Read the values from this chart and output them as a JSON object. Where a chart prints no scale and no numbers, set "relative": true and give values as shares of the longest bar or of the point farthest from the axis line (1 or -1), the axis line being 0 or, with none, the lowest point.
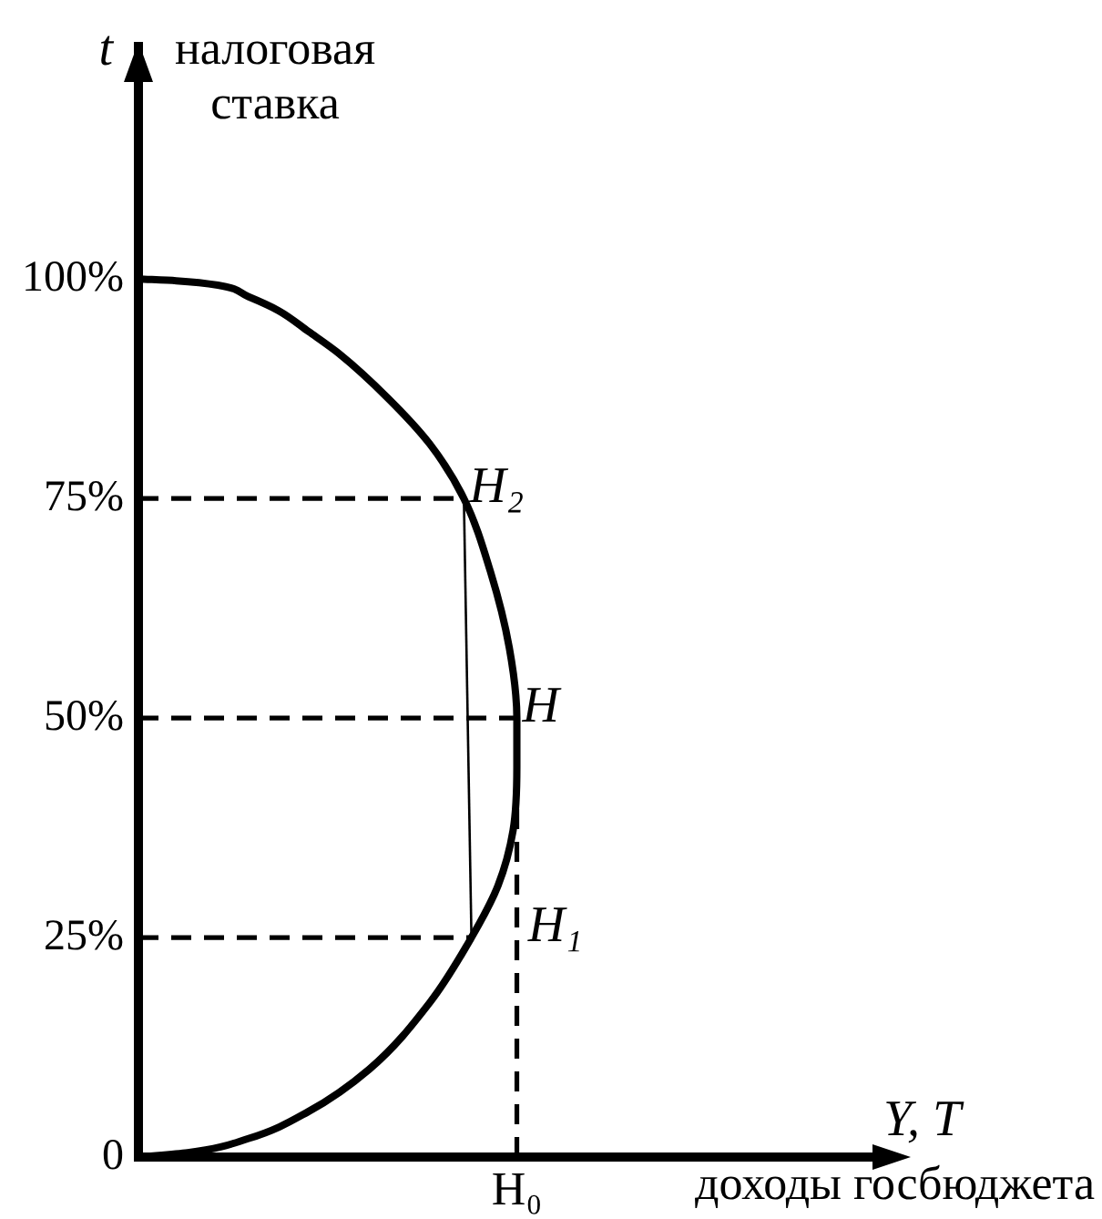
{
  "chart_data": {
    "type": "line",
    "orientation": "horizontal",
    "relative": true,
    "xlabel": "доходы госбюджета",
    "ylabel": "налоговая ставка",
    "annotations": [
      "t",
      "Y, T",
      {
        "text": "H₂",
        "x": 0.86,
        "y": 75
      },
      {
        "text": "H",
        "x": 1.0,
        "y": 50
      },
      {
        "text": "H₁",
        "x": 0.88,
        "y": 25
      },
      {
        "text": "H₀",
        "x": 1.0,
        "y": 0
      }
    ],
    "ylim": [
      0,
      127
    ],
    "yticks": [
      {
        "value": 0,
        "label": "0"
      },
      {
        "value": 25,
        "label": "25%"
      },
      {
        "value": 50,
        "label": "50%"
      },
      {
        "value": 75,
        "label": "75%"
      },
      {
        "value": 100,
        "label": "100%"
      }
    ],
    "series": [
      {
        "color": "#000000",
        "x": [
          0,
          0.5,
          2.1,
          5.2,
          10,
          17.6,
          25,
          30.9,
          37.2,
          44.4,
          50,
          58,
          66.7,
          75,
          81.2,
          86.4,
          91.5,
          94,
          96.4,
          98,
          99.3,
          99.8,
          100
        ],
        "values": [
          0,
          0.13,
          0.29,
          0.45,
          0.61,
          0.77,
          0.88,
          0.95,
          0.99,
          1.0,
          1.0,
          0.98,
          0.93,
          0.86,
          0.77,
          0.66,
          0.53,
          0.45,
          0.37,
          0.29,
          0.21,
          0.1,
          0
        ]
      },
      {
        "color": "#000000",
        "line_style": "dashed",
        "x": [
          75,
          75
        ],
        "values": [
          0,
          0.86
        ]
      },
      {
        "color": "#000000",
        "line_style": "dashed",
        "x": [
          50,
          50
        ],
        "values": [
          0,
          1.0
        ]
      },
      {
        "color": "#000000",
        "line_style": "dashed",
        "x": [
          25,
          25
        ],
        "values": [
          0,
          0.88
        ]
      },
      {
        "color": "#000000",
        "line_style": "dashed",
        "x": [
          0,
          42
        ],
        "values": [
          1,
          1
        ]
      },
      {
        "color": "#000000",
        "x": [
          75,
          25
        ],
        "values": [
          0.86,
          0.88
        ]
      }
    ]
  }
}
